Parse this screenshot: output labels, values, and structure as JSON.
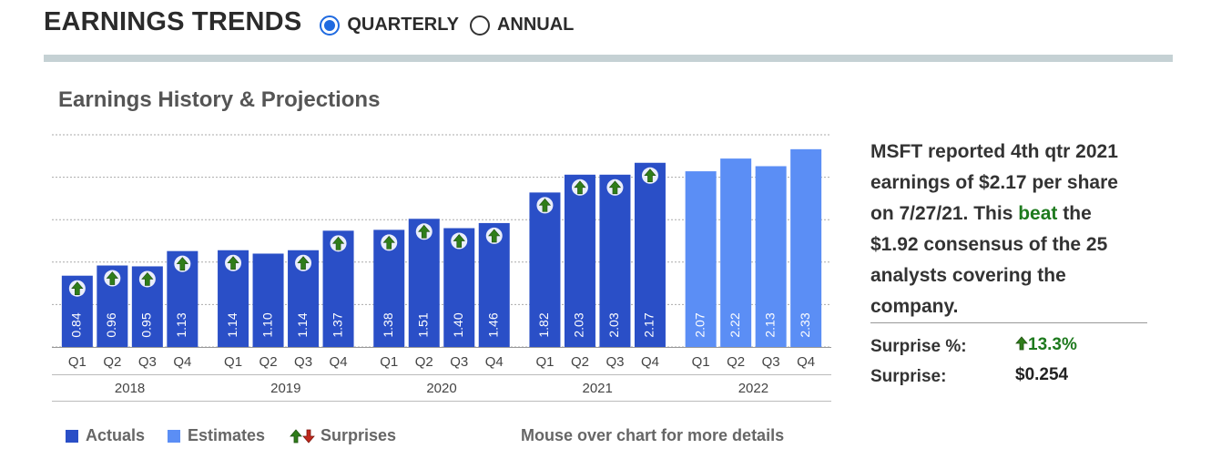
{
  "header": {
    "title": "EARNINGS TRENDS",
    "options": [
      {
        "label": "QUARTERLY",
        "selected": true
      },
      {
        "label": "ANNUAL",
        "selected": false
      }
    ]
  },
  "chart_data": {
    "type": "bar",
    "title": "Earnings History & Projections",
    "groups": [
      {
        "year": "2018",
        "quarters": [
          "Q1",
          "Q2",
          "Q3",
          "Q4"
        ],
        "values": [
          0.84,
          0.96,
          0.95,
          1.13
        ],
        "labels": [
          "0.84",
          "0.96",
          "0.95",
          "1.13"
        ],
        "kind": "actual",
        "surprise": [
          "up",
          "up",
          "up",
          "up"
        ]
      },
      {
        "year": "2019",
        "quarters": [
          "Q1",
          "Q2",
          "Q3",
          "Q4"
        ],
        "values": [
          1.14,
          1.1,
          1.14,
          1.37
        ],
        "labels": [
          "1.14",
          "1.10",
          "1.14",
          "1.37"
        ],
        "kind": "actual",
        "surprise": [
          "up",
          "none",
          "up",
          "up"
        ]
      },
      {
        "year": "2020",
        "quarters": [
          "Q1",
          "Q2",
          "Q3",
          "Q4"
        ],
        "values": [
          1.38,
          1.51,
          1.4,
          1.46
        ],
        "labels": [
          "1.38",
          "1.51",
          "1.40",
          "1.46"
        ],
        "kind": "actual",
        "surprise": [
          "up",
          "up",
          "up",
          "up"
        ]
      },
      {
        "year": "2021",
        "quarters": [
          "Q1",
          "Q2",
          "Q3",
          "Q4"
        ],
        "values": [
          1.82,
          2.03,
          2.03,
          2.17
        ],
        "labels": [
          "1.82",
          "2.03",
          "2.03",
          "2.17"
        ],
        "kind": "actual",
        "surprise": [
          "up",
          "up",
          "up",
          "up"
        ]
      },
      {
        "year": "2022",
        "quarters": [
          "Q1",
          "Q2",
          "Q3",
          "Q4"
        ],
        "values": [
          2.07,
          2.22,
          2.13,
          2.33
        ],
        "labels": [
          "2.07",
          "2.22",
          "2.13",
          "2.33"
        ],
        "kind": "estimate",
        "surprise": [
          "none",
          "none",
          "none",
          "none"
        ]
      }
    ],
    "ylim": [
      0,
      2.5
    ],
    "grid": true,
    "legend": [
      {
        "label": "Actuals",
        "color": "#2a4fc7"
      },
      {
        "label": "Estimates",
        "color": "#5b8ef5"
      },
      {
        "label": "Surprises"
      }
    ],
    "hint": "Mouse over chart for more details"
  },
  "colors": {
    "actual": "#2a4fc7",
    "estimate": "#5b8ef5",
    "up_arrow": "#2f7d1a",
    "down_arrow": "#c0281c"
  },
  "summary": {
    "line1": "MSFT reported 4th qtr 2021",
    "line2": "earnings of $2.17 per share",
    "line3_pre": "on 7/27/21. This ",
    "line3_beat": "beat",
    "line3_post": " the",
    "line4": "$1.92 consensus of the 25",
    "line5": "analysts covering the",
    "line6": "company.",
    "surprise_pct_label": "Surprise %:",
    "surprise_pct_value": "13.3%",
    "surprise_label": "Surprise:",
    "surprise_value": "$0.254"
  }
}
